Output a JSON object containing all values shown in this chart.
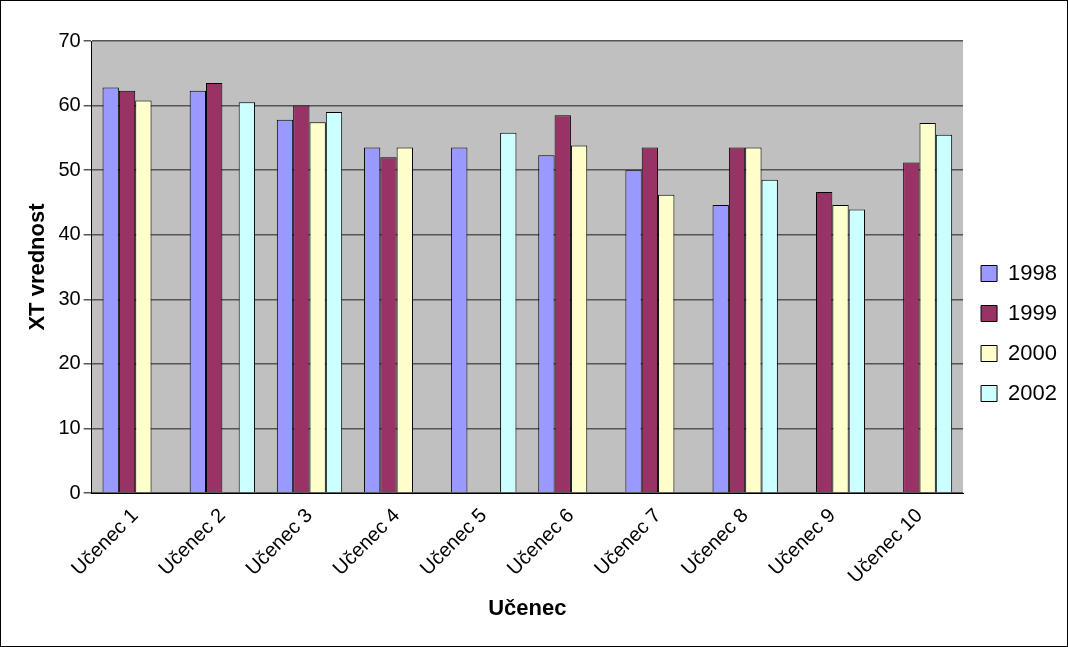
{
  "chart_data": {
    "type": "bar",
    "xlabel": "Učenec",
    "ylabel": "XT vrednost",
    "categories": [
      "Učenec 1",
      "Učenec 2",
      "Učenec 3",
      "Učenec 4",
      "Učenec 5",
      "Učenec 6",
      "Učenec 7",
      "Učenec 8",
      "Učenec 9",
      "Učenec 10"
    ],
    "series": [
      {
        "name": "1998",
        "color": "#9999ff",
        "values": [
          62.8,
          62.3,
          57.8,
          53.5,
          53.5,
          52.3,
          50,
          44.6,
          null,
          null
        ]
      },
      {
        "name": "1999",
        "color": "#993366",
        "values": [
          62.3,
          63.5,
          60,
          52,
          null,
          58.5,
          53.5,
          53.5,
          46.6,
          51.2
        ]
      },
      {
        "name": "2000",
        "color": "#ffffcc",
        "values": [
          60.8,
          null,
          57.4,
          53.5,
          null,
          53.8,
          46.2,
          53.5,
          44.6,
          57.3
        ]
      },
      {
        "name": "2002",
        "color": "#ccffff",
        "values": [
          null,
          60.5,
          59,
          null,
          55.8,
          null,
          null,
          48.5,
          43.9,
          55.5
        ]
      }
    ],
    "ylim": [
      0,
      70
    ],
    "yticks": [
      0,
      10,
      20,
      30,
      40,
      50,
      60,
      70
    ],
    "grid": "y",
    "legend": "right"
  }
}
